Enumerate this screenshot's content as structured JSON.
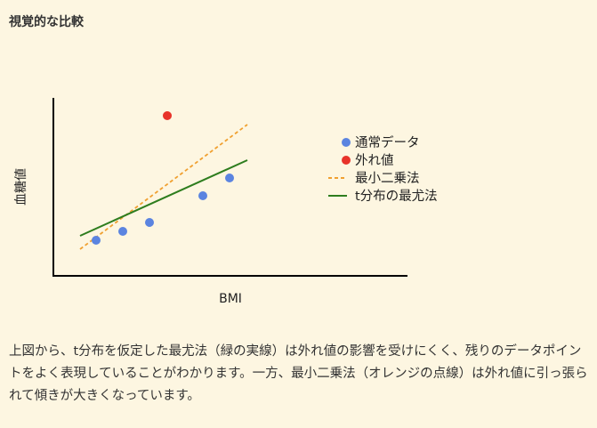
{
  "section_title": "視覚的な比較",
  "chart_data": {
    "type": "scatter",
    "title": "",
    "xlabel": "BMI",
    "ylabel": "血糖値",
    "xlim": [
      0,
      40
    ],
    "ylim": [
      0,
      20
    ],
    "grid": false,
    "ticks": false,
    "legend_position": "right",
    "series": [
      {
        "name": "通常データ",
        "kind": "points",
        "color": "#5b84e0",
        "x": [
          4.8,
          7.8,
          10.8,
          16.8,
          19.8
        ],
        "y": [
          4,
          5,
          6,
          9,
          11
        ]
      },
      {
        "name": "外れ値",
        "kind": "points",
        "color": "#e8332a",
        "x": [
          12.8
        ],
        "y": [
          18
        ]
      },
      {
        "name": "最小二乗法",
        "kind": "dashed-line",
        "color": "#f0a030",
        "x": [
          3,
          21.8
        ],
        "y": [
          3,
          17
        ]
      },
      {
        "name": "t分布の最尤法",
        "kind": "line",
        "color": "#2e7d1e",
        "x": [
          3,
          21.8
        ],
        "y": [
          4.5,
          13
        ]
      }
    ]
  },
  "paragraph": "上図から、t分布を仮定した最尤法（緑の実線）は外れ値の影響を受けにくく、残りのデータポイントをよく表現していることがわかります。一方、最小二乗法（オレンジの点線）は外れ値に引っ張られて傾きが大きくなっています。"
}
